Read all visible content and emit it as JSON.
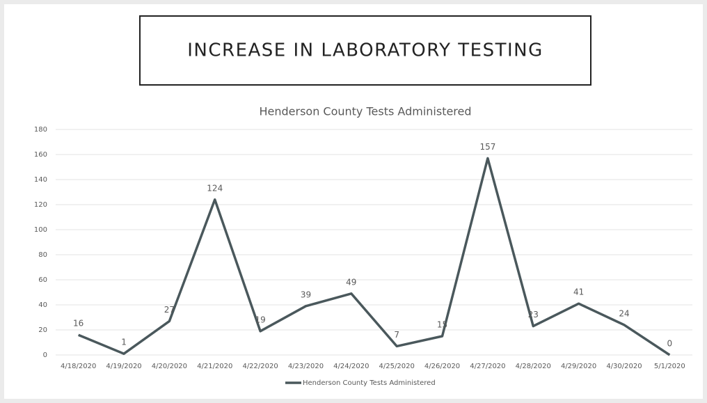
{
  "slide_title": "INCREASE IN LABORATORY TESTING",
  "chart_data": {
    "type": "line",
    "title": "Henderson County Tests Administered",
    "categories": [
      "4/18/2020",
      "4/19/2020",
      "4/20/2020",
      "4/21/2020",
      "4/22/2020",
      "4/23/2020",
      "4/24/2020",
      "4/25/2020",
      "4/26/2020",
      "4/27/2020",
      "4/28/2020",
      "4/29/2020",
      "4/30/2020",
      "5/1/2020"
    ],
    "series": [
      {
        "name": "Henderson County Tests Administered",
        "color": "#4a585c",
        "values": [
          16,
          1,
          27,
          124,
          19,
          39,
          49,
          7,
          15,
          157,
          23,
          41,
          24,
          0
        ]
      }
    ],
    "ylim": [
      0,
      180
    ],
    "yticks": [
      0,
      20,
      40,
      60,
      80,
      100,
      120,
      140,
      160,
      180
    ],
    "grid": true,
    "legend": "bottom",
    "data_labels": true
  }
}
